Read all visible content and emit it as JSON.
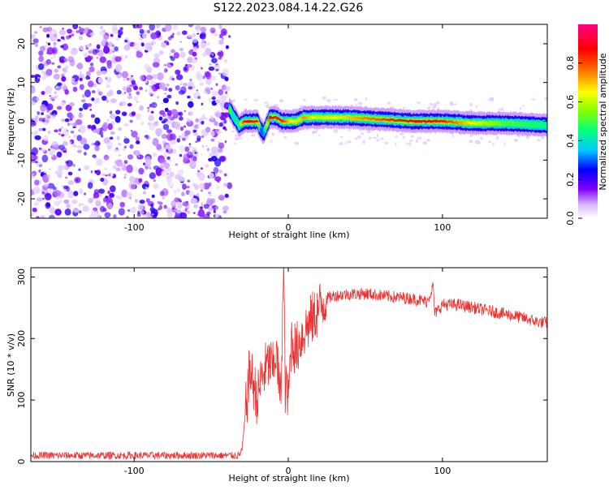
{
  "title": "S122.2023.084.14.22.G26",
  "chart_data": [
    {
      "type": "heatmap",
      "xlabel": "Height of straight line (km)",
      "ylabel": "Frequency (Hz)",
      "xlim": [
        -167,
        168
      ],
      "ylim": [
        -25,
        25
      ],
      "xticks": [
        -100,
        0,
        100
      ],
      "yticks": [
        -20,
        -10,
        0,
        10,
        20
      ],
      "colorbar": {
        "label": "Normalized spectral amplitude",
        "range": [
          0.0,
          1.0
        ],
        "ticks": [
          "0.0",
          "0.2",
          "0.4",
          "0.6",
          "0.8"
        ],
        "colors": [
          "#ffffff",
          "#d8b8ff",
          "#8000ff",
          "#0000ff",
          "#00c8ff",
          "#00ff80",
          "#80ff00",
          "#ffff00",
          "#ff8000",
          "#ff0000",
          "#ff0080"
        ]
      },
      "noise_region_x": [
        -167,
        -38
      ],
      "signal_track": {
        "x": [
          -38,
          -35,
          -32,
          -28,
          -24,
          -20,
          -18,
          -16,
          -12,
          -8,
          -4,
          0,
          5,
          10,
          20,
          40,
          60,
          80,
          100,
          120,
          140,
          168
        ],
        "freq": [
          3,
          1,
          -1,
          0,
          0,
          0,
          -2,
          -3,
          1,
          1,
          0,
          0,
          0,
          1,
          1,
          1,
          0.5,
          0,
          0,
          -0.5,
          -0.5,
          -1
        ],
        "amplitude": [
          0.5,
          0.4,
          0.45,
          0.95,
          0.9,
          0.85,
          0.3,
          0.3,
          0.9,
          0.85,
          0.85,
          0.7,
          0.6,
          0.75,
          0.6,
          0.7,
          0.8,
          0.9,
          0.85,
          0.65,
          0.5,
          0.45
        ]
      }
    },
    {
      "type": "line",
      "xlabel": "Height of straight line (km)",
      "ylabel": "SNR (10 * v/v)",
      "xlim": [
        -167,
        168
      ],
      "ylim": [
        0,
        315
      ],
      "xticks": [
        -100,
        0,
        100
      ],
      "yticks": [
        0,
        100,
        200,
        300
      ],
      "color": "#ee3333",
      "series": [
        {
          "x": [
            -167,
            -150,
            -120,
            -100,
            -80,
            -60,
            -40,
            -32,
            -30,
            -25,
            -22,
            -20,
            -18,
            -15,
            -12,
            -10,
            -8,
            -5,
            -3,
            -2,
            0,
            2,
            5,
            8,
            10,
            15,
            18,
            20,
            25,
            30,
            40,
            50,
            60,
            70,
            80,
            90,
            94,
            95,
            100,
            110,
            120,
            130,
            140,
            150,
            160,
            168
          ],
          "y": [
            10,
            10,
            10,
            10,
            10,
            10,
            10,
            10,
            20,
            150,
            120,
            100,
            130,
            150,
            160,
            150,
            180,
            100,
            315,
            120,
            100,
            200,
            180,
            200,
            210,
            230,
            240,
            250,
            265,
            270,
            272,
            273,
            270,
            267,
            265,
            260,
            285,
            240,
            255,
            255,
            250,
            245,
            240,
            235,
            228,
            225
          ]
        }
      ]
    }
  ]
}
